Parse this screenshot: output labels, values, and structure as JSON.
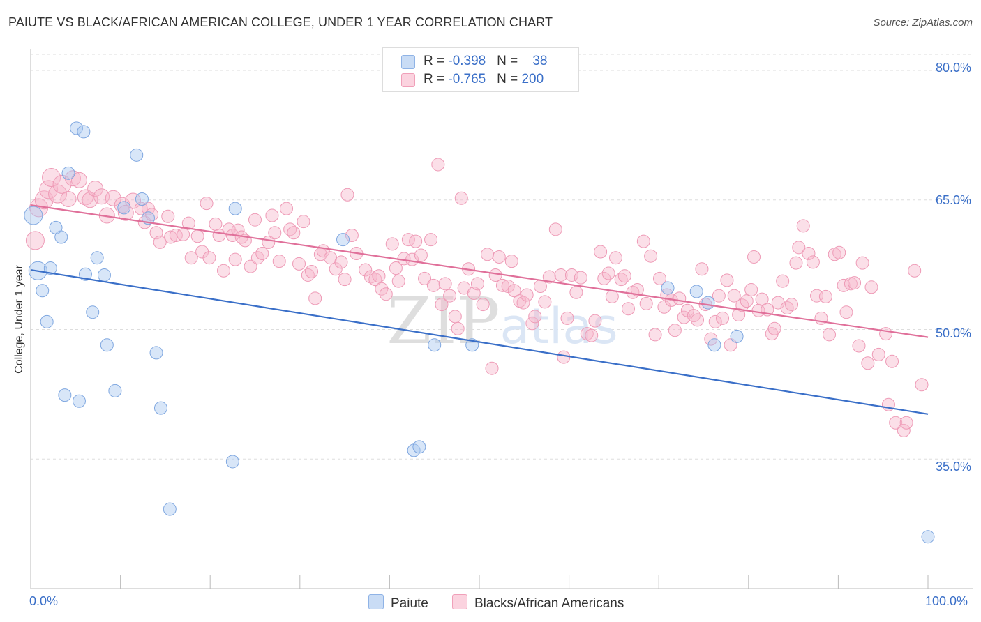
{
  "title": "PAIUTE VS BLACK/AFRICAN AMERICAN COLLEGE, UNDER 1 YEAR CORRELATION CHART",
  "source": "Source: ZipAtlas.com",
  "watermark": "ZIPatlas",
  "legend": {
    "rows": [
      {
        "r_label": "R = ",
        "r_value": "-0.398",
        "n_label": "N = ",
        "n_value": "38",
        "color": "#a8c8f0"
      },
      {
        "r_label": "R = ",
        "r_value": "-0.765",
        "n_label": "N = ",
        "n_value": "200",
        "color": "#f7b8cc"
      }
    ]
  },
  "bottom_legend": {
    "paiute": "Paiute",
    "black": "Blacks/African Americans"
  },
  "colors": {
    "blue": "#3a6fc8",
    "blue_fill": "#a8c8f0",
    "pink": "#e0709a",
    "pink_fill": "#f7b8cc"
  },
  "chart_data": {
    "type": "scatter",
    "ylabel": "College, Under 1 year",
    "xlim": [
      0,
      100
    ],
    "ylim": [
      20,
      82.5
    ],
    "x_tick_labels": [
      "0.0%",
      "100.0%"
    ],
    "y_ticks": [
      35,
      50,
      65,
      80
    ],
    "y_tick_labels": [
      "35.0%",
      "50.0%",
      "65.0%",
      "80.0%"
    ],
    "grid": "horizontal dashed",
    "series": [
      {
        "name": "Paiute",
        "trend": {
          "x": [
            0,
            100
          ],
          "y": [
            56.9,
            40.2
          ]
        },
        "points": [
          [
            0.3,
            63.2
          ],
          [
            0.8,
            56.8
          ],
          [
            1.3,
            54.5
          ],
          [
            1.8,
            50.9
          ],
          [
            2.2,
            57.1
          ],
          [
            2.8,
            61.8
          ],
          [
            3.4,
            60.7
          ],
          [
            3.8,
            42.4
          ],
          [
            4.2,
            68.1
          ],
          [
            5.1,
            73.3
          ],
          [
            5.4,
            41.7
          ],
          [
            5.9,
            72.9
          ],
          [
            6.1,
            56.4
          ],
          [
            6.9,
            52.0
          ],
          [
            7.4,
            58.3
          ],
          [
            8.2,
            56.3
          ],
          [
            8.5,
            48.2
          ],
          [
            9.4,
            42.9
          ],
          [
            10.4,
            64.1
          ],
          [
            11.8,
            70.2
          ],
          [
            12.4,
            65.1
          ],
          [
            13.1,
            62.9
          ],
          [
            14.0,
            47.3
          ],
          [
            14.5,
            40.9
          ],
          [
            15.5,
            29.2
          ],
          [
            22.5,
            34.7
          ],
          [
            22.8,
            64.0
          ],
          [
            34.8,
            60.4
          ],
          [
            42.7,
            36.0
          ],
          [
            43.3,
            36.4
          ],
          [
            45.0,
            48.2
          ],
          [
            49.2,
            48.2
          ],
          [
            71.0,
            54.8
          ],
          [
            74.2,
            54.4
          ],
          [
            75.5,
            53.1
          ],
          [
            76.2,
            48.2
          ],
          [
            78.7,
            49.2
          ],
          [
            100.0,
            26.0
          ]
        ]
      },
      {
        "name": "Blacks/African Americans",
        "trend": {
          "x": [
            0,
            100
          ],
          "y": [
            64.4,
            49.1
          ]
        },
        "points": [
          [
            0.5,
            60.3
          ],
          [
            0.9,
            64.1
          ],
          [
            1.5,
            65.0
          ],
          [
            2.0,
            66.2
          ],
          [
            2.3,
            67.6
          ],
          [
            3.0,
            65.7
          ],
          [
            3.5,
            66.8
          ],
          [
            4.2,
            65.1
          ],
          [
            4.7,
            67.5
          ],
          [
            5.4,
            67.3
          ],
          [
            6.1,
            65.3
          ],
          [
            6.6,
            65.0
          ],
          [
            7.2,
            66.3
          ],
          [
            7.9,
            65.4
          ],
          [
            8.5,
            63.2
          ],
          [
            9.2,
            65.2
          ],
          [
            10.2,
            64.4
          ],
          [
            10.6,
            63.5
          ],
          [
            11.4,
            64.9
          ],
          [
            12.3,
            64.0
          ],
          [
            12.7,
            62.4
          ],
          [
            13.1,
            64.0
          ],
          [
            13.5,
            63.3
          ],
          [
            14.0,
            61.2
          ],
          [
            14.4,
            60.1
          ],
          [
            15.3,
            63.1
          ],
          [
            15.6,
            60.7
          ],
          [
            16.2,
            60.9
          ],
          [
            17.0,
            61.0
          ],
          [
            17.6,
            62.3
          ],
          [
            17.9,
            58.3
          ],
          [
            18.6,
            60.8
          ],
          [
            19.1,
            59.0
          ],
          [
            19.6,
            64.6
          ],
          [
            19.9,
            58.3
          ],
          [
            20.6,
            62.2
          ],
          [
            21.0,
            60.9
          ],
          [
            21.5,
            56.8
          ],
          [
            22.1,
            61.6
          ],
          [
            22.5,
            60.9
          ],
          [
            22.8,
            58.1
          ],
          [
            23.1,
            61.5
          ],
          [
            23.5,
            60.7
          ],
          [
            23.9,
            60.3
          ],
          [
            24.5,
            57.3
          ],
          [
            25.0,
            62.7
          ],
          [
            25.3,
            58.3
          ],
          [
            25.8,
            58.8
          ],
          [
            26.5,
            60.1
          ],
          [
            26.9,
            63.2
          ],
          [
            27.2,
            61.2
          ],
          [
            27.7,
            57.9
          ],
          [
            28.5,
            64.0
          ],
          [
            28.9,
            61.6
          ],
          [
            29.3,
            61.2
          ],
          [
            29.9,
            57.6
          ],
          [
            30.4,
            62.5
          ],
          [
            30.9,
            56.3
          ],
          [
            31.3,
            56.7
          ],
          [
            31.7,
            53.6
          ],
          [
            32.3,
            58.7
          ],
          [
            32.6,
            59.1
          ],
          [
            33.4,
            58.3
          ],
          [
            34.0,
            57.0
          ],
          [
            34.6,
            57.8
          ],
          [
            35.0,
            55.8
          ],
          [
            35.3,
            65.6
          ],
          [
            35.8,
            60.9
          ],
          [
            36.3,
            58.8
          ],
          [
            37.3,
            56.9
          ],
          [
            37.9,
            56.1
          ],
          [
            38.4,
            55.8
          ],
          [
            38.8,
            56.2
          ],
          [
            39.1,
            54.7
          ],
          [
            39.6,
            54.1
          ],
          [
            40.3,
            59.9
          ],
          [
            40.7,
            57.1
          ],
          [
            41.0,
            55.6
          ],
          [
            41.6,
            58.2
          ],
          [
            42.1,
            60.4
          ],
          [
            42.5,
            58.1
          ],
          [
            42.9,
            60.2
          ],
          [
            43.5,
            58.6
          ],
          [
            43.9,
            55.9
          ],
          [
            44.6,
            60.4
          ],
          [
            44.9,
            55.1
          ],
          [
            45.4,
            69.1
          ],
          [
            45.8,
            52.9
          ],
          [
            46.2,
            55.3
          ],
          [
            46.7,
            53.9
          ],
          [
            47.3,
            51.5
          ],
          [
            47.6,
            50.1
          ],
          [
            48.0,
            65.2
          ],
          [
            48.3,
            54.8
          ],
          [
            48.8,
            57.0
          ],
          [
            49.4,
            54.2
          ],
          [
            49.8,
            55.3
          ],
          [
            50.4,
            52.9
          ],
          [
            50.9,
            58.7
          ],
          [
            51.4,
            45.5
          ],
          [
            51.8,
            56.3
          ],
          [
            52.2,
            58.4
          ],
          [
            52.6,
            55.1
          ],
          [
            53.2,
            55.0
          ],
          [
            53.6,
            57.9
          ],
          [
            53.9,
            54.5
          ],
          [
            54.5,
            53.3
          ],
          [
            54.9,
            53.1
          ],
          [
            55.3,
            54.0
          ],
          [
            55.9,
            50.7
          ],
          [
            56.2,
            51.5
          ],
          [
            56.8,
            55.0
          ],
          [
            57.3,
            53.2
          ],
          [
            57.8,
            56.1
          ],
          [
            58.5,
            61.6
          ],
          [
            59.1,
            56.3
          ],
          [
            59.4,
            46.8
          ],
          [
            59.8,
            51.3
          ],
          [
            60.3,
            56.3
          ],
          [
            60.8,
            54.3
          ],
          [
            61.3,
            56.0
          ],
          [
            62.0,
            49.5
          ],
          [
            62.5,
            49.3
          ],
          [
            62.9,
            51.0
          ],
          [
            63.5,
            59.0
          ],
          [
            63.9,
            55.9
          ],
          [
            64.4,
            56.5
          ],
          [
            64.8,
            53.8
          ],
          [
            65.2,
            58.3
          ],
          [
            65.8,
            55.8
          ],
          [
            66.2,
            56.2
          ],
          [
            66.6,
            52.4
          ],
          [
            67.1,
            54.3
          ],
          [
            67.6,
            54.6
          ],
          [
            68.3,
            60.2
          ],
          [
            68.6,
            53.0
          ],
          [
            69.1,
            58.5
          ],
          [
            69.6,
            49.4
          ],
          [
            70.1,
            55.9
          ],
          [
            70.6,
            52.6
          ],
          [
            70.9,
            54.0
          ],
          [
            71.4,
            53.4
          ],
          [
            71.8,
            49.9
          ],
          [
            72.3,
            53.6
          ],
          [
            72.8,
            51.4
          ],
          [
            73.2,
            52.2
          ],
          [
            73.9,
            51.6
          ],
          [
            74.3,
            51.1
          ],
          [
            74.8,
            57.0
          ],
          [
            75.2,
            52.9
          ],
          [
            75.8,
            48.9
          ],
          [
            76.3,
            50.9
          ],
          [
            76.7,
            53.9
          ],
          [
            77.1,
            51.3
          ],
          [
            77.6,
            55.7
          ],
          [
            78.0,
            48.2
          ],
          [
            78.4,
            53.9
          ],
          [
            78.9,
            51.7
          ],
          [
            79.3,
            52.8
          ],
          [
            79.8,
            53.3
          ],
          [
            80.3,
            54.6
          ],
          [
            80.6,
            58.4
          ],
          [
            81.1,
            52.2
          ],
          [
            81.5,
            53.5
          ],
          [
            82.1,
            52.3
          ],
          [
            82.6,
            49.5
          ],
          [
            82.9,
            50.1
          ],
          [
            83.3,
            53.1
          ],
          [
            83.8,
            55.6
          ],
          [
            84.3,
            52.5
          ],
          [
            84.8,
            52.9
          ],
          [
            85.3,
            57.7
          ],
          [
            85.6,
            59.5
          ],
          [
            86.1,
            62.0
          ],
          [
            86.7,
            58.8
          ],
          [
            87.2,
            57.8
          ],
          [
            87.6,
            53.9
          ],
          [
            88.1,
            51.3
          ],
          [
            88.6,
            53.8
          ],
          [
            89.0,
            49.4
          ],
          [
            89.6,
            58.7
          ],
          [
            90.1,
            58.9
          ],
          [
            90.6,
            55.1
          ],
          [
            90.9,
            52.0
          ],
          [
            91.4,
            55.3
          ],
          [
            91.8,
            55.4
          ],
          [
            92.3,
            48.1
          ],
          [
            92.7,
            57.7
          ],
          [
            93.3,
            46.1
          ],
          [
            93.7,
            54.9
          ],
          [
            94.5,
            47.1
          ],
          [
            95.3,
            49.5
          ],
          [
            95.6,
            41.3
          ],
          [
            96.0,
            46.3
          ],
          [
            96.4,
            39.2
          ],
          [
            97.3,
            38.3
          ],
          [
            97.6,
            39.2
          ],
          [
            98.5,
            56.8
          ],
          [
            99.3,
            43.6
          ]
        ]
      }
    ]
  }
}
